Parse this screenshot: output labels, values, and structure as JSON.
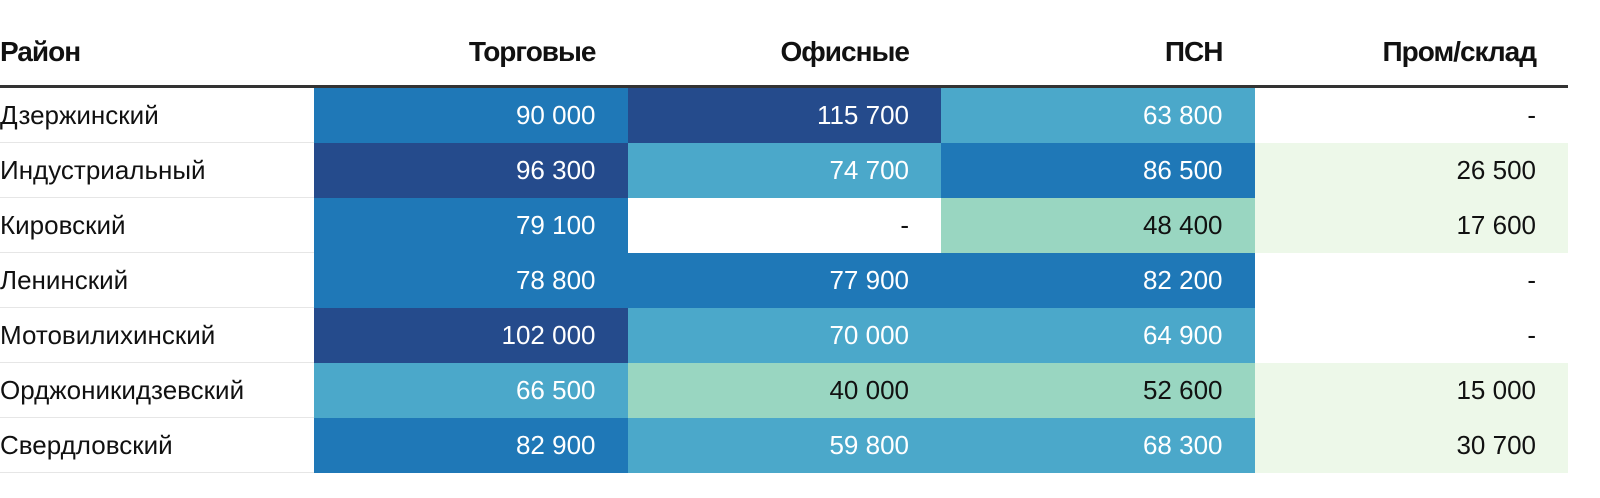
{
  "chart_data": {
    "type": "table",
    "columns": [
      "Район",
      "Торговые",
      "Офисные",
      "ПСН",
      "Пром/склад"
    ],
    "rows": [
      {
        "district": "Дзержинский",
        "values": [
          "90 000",
          "115 700",
          "63 800",
          "-"
        ],
        "numeric": [
          90000,
          115700,
          63800,
          null
        ]
      },
      {
        "district": "Индустриальный",
        "values": [
          "96 300",
          "74 700",
          "86 500",
          "26 500"
        ],
        "numeric": [
          96300,
          74700,
          86500,
          26500
        ]
      },
      {
        "district": "Кировский",
        "values": [
          "79 100",
          "-",
          "48 400",
          "17 600"
        ],
        "numeric": [
          79100,
          null,
          48400,
          17600
        ]
      },
      {
        "district": "Ленинский",
        "values": [
          "78 800",
          "77 900",
          "82 200",
          "-"
        ],
        "numeric": [
          78800,
          77900,
          82200,
          null
        ]
      },
      {
        "district": "Мотовилихинский",
        "values": [
          "102 000",
          "70 000",
          "64 900",
          "-"
        ],
        "numeric": [
          102000,
          70000,
          64900,
          null
        ]
      },
      {
        "district": "Орджоникидзевский",
        "values": [
          "66 500",
          "40 000",
          "52 600",
          "15 000"
        ],
        "numeric": [
          66500,
          40000,
          52600,
          15000
        ]
      },
      {
        "district": "Свердловский",
        "values": [
          "82 900",
          "59 800",
          "68 300",
          "30 700"
        ],
        "numeric": [
          82900,
          59800,
          68300,
          30700
        ]
      }
    ],
    "color_scale": [
      {
        "min": 0,
        "max": 40000,
        "bg": "#edf8e9",
        "fg": "#111111"
      },
      {
        "min": 40000,
        "max": 55000,
        "bg": "#99d6c1",
        "fg": "#111111"
      },
      {
        "min": 55000,
        "max": 76000,
        "bg": "#4ba8ca",
        "fg": "#ffffff"
      },
      {
        "min": 76000,
        "max": 90500,
        "bg": "#1f78b7",
        "fg": "#ffffff"
      },
      {
        "min": 90500,
        "max": 1000000,
        "bg": "#254b8c",
        "fg": "#ffffff"
      }
    ],
    "empty_bg": "#ffffff",
    "empty_fg": "#111111"
  }
}
